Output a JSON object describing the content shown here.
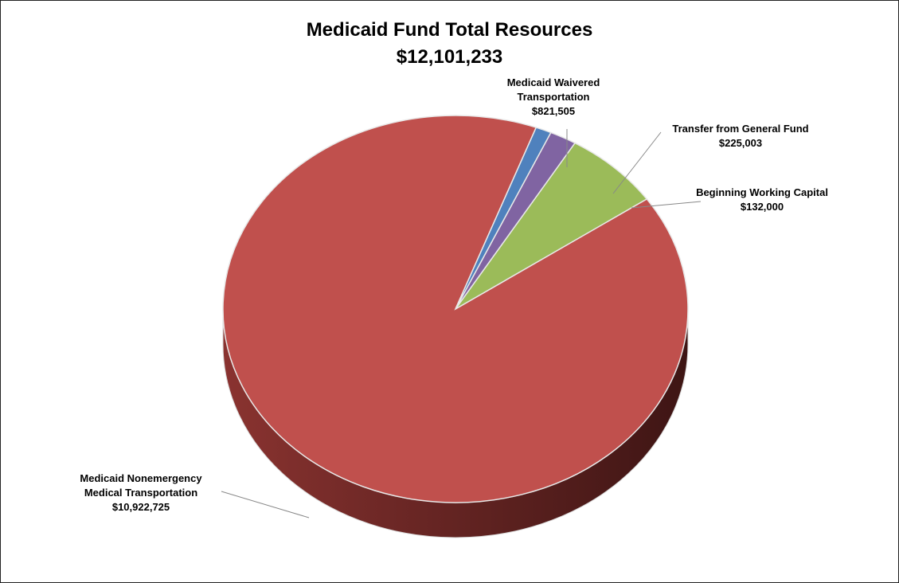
{
  "chart_data": {
    "type": "pie",
    "title": "Medicaid Fund Total Resources",
    "subtitle": "$12,101,233",
    "slices": [
      {
        "label": "Medicaid Nonemergency Medical Transportation",
        "label_lines": [
          "Medicaid Nonemergency",
          "Medical Transportation"
        ],
        "value_text": "$10,922,725",
        "value": 10922725,
        "color": "#C0504D"
      },
      {
        "label": "Medicaid Waivered Transportation",
        "label_lines": [
          "Medicaid Waivered",
          "Transportation"
        ],
        "value_text": "$821,505",
        "value": 821505,
        "color": "#9BBB59"
      },
      {
        "label": "Transfer from General Fund",
        "label_lines": [
          "Transfer from General Fund"
        ],
        "value_text": "$225,003",
        "value": 225003,
        "color": "#8064A2"
      },
      {
        "label": "Beginning Working Capital",
        "label_lines": [
          "Beginning Working Capital"
        ],
        "value_text": "$132,000",
        "value": 132000,
        "color": "#4F81BD"
      }
    ]
  }
}
